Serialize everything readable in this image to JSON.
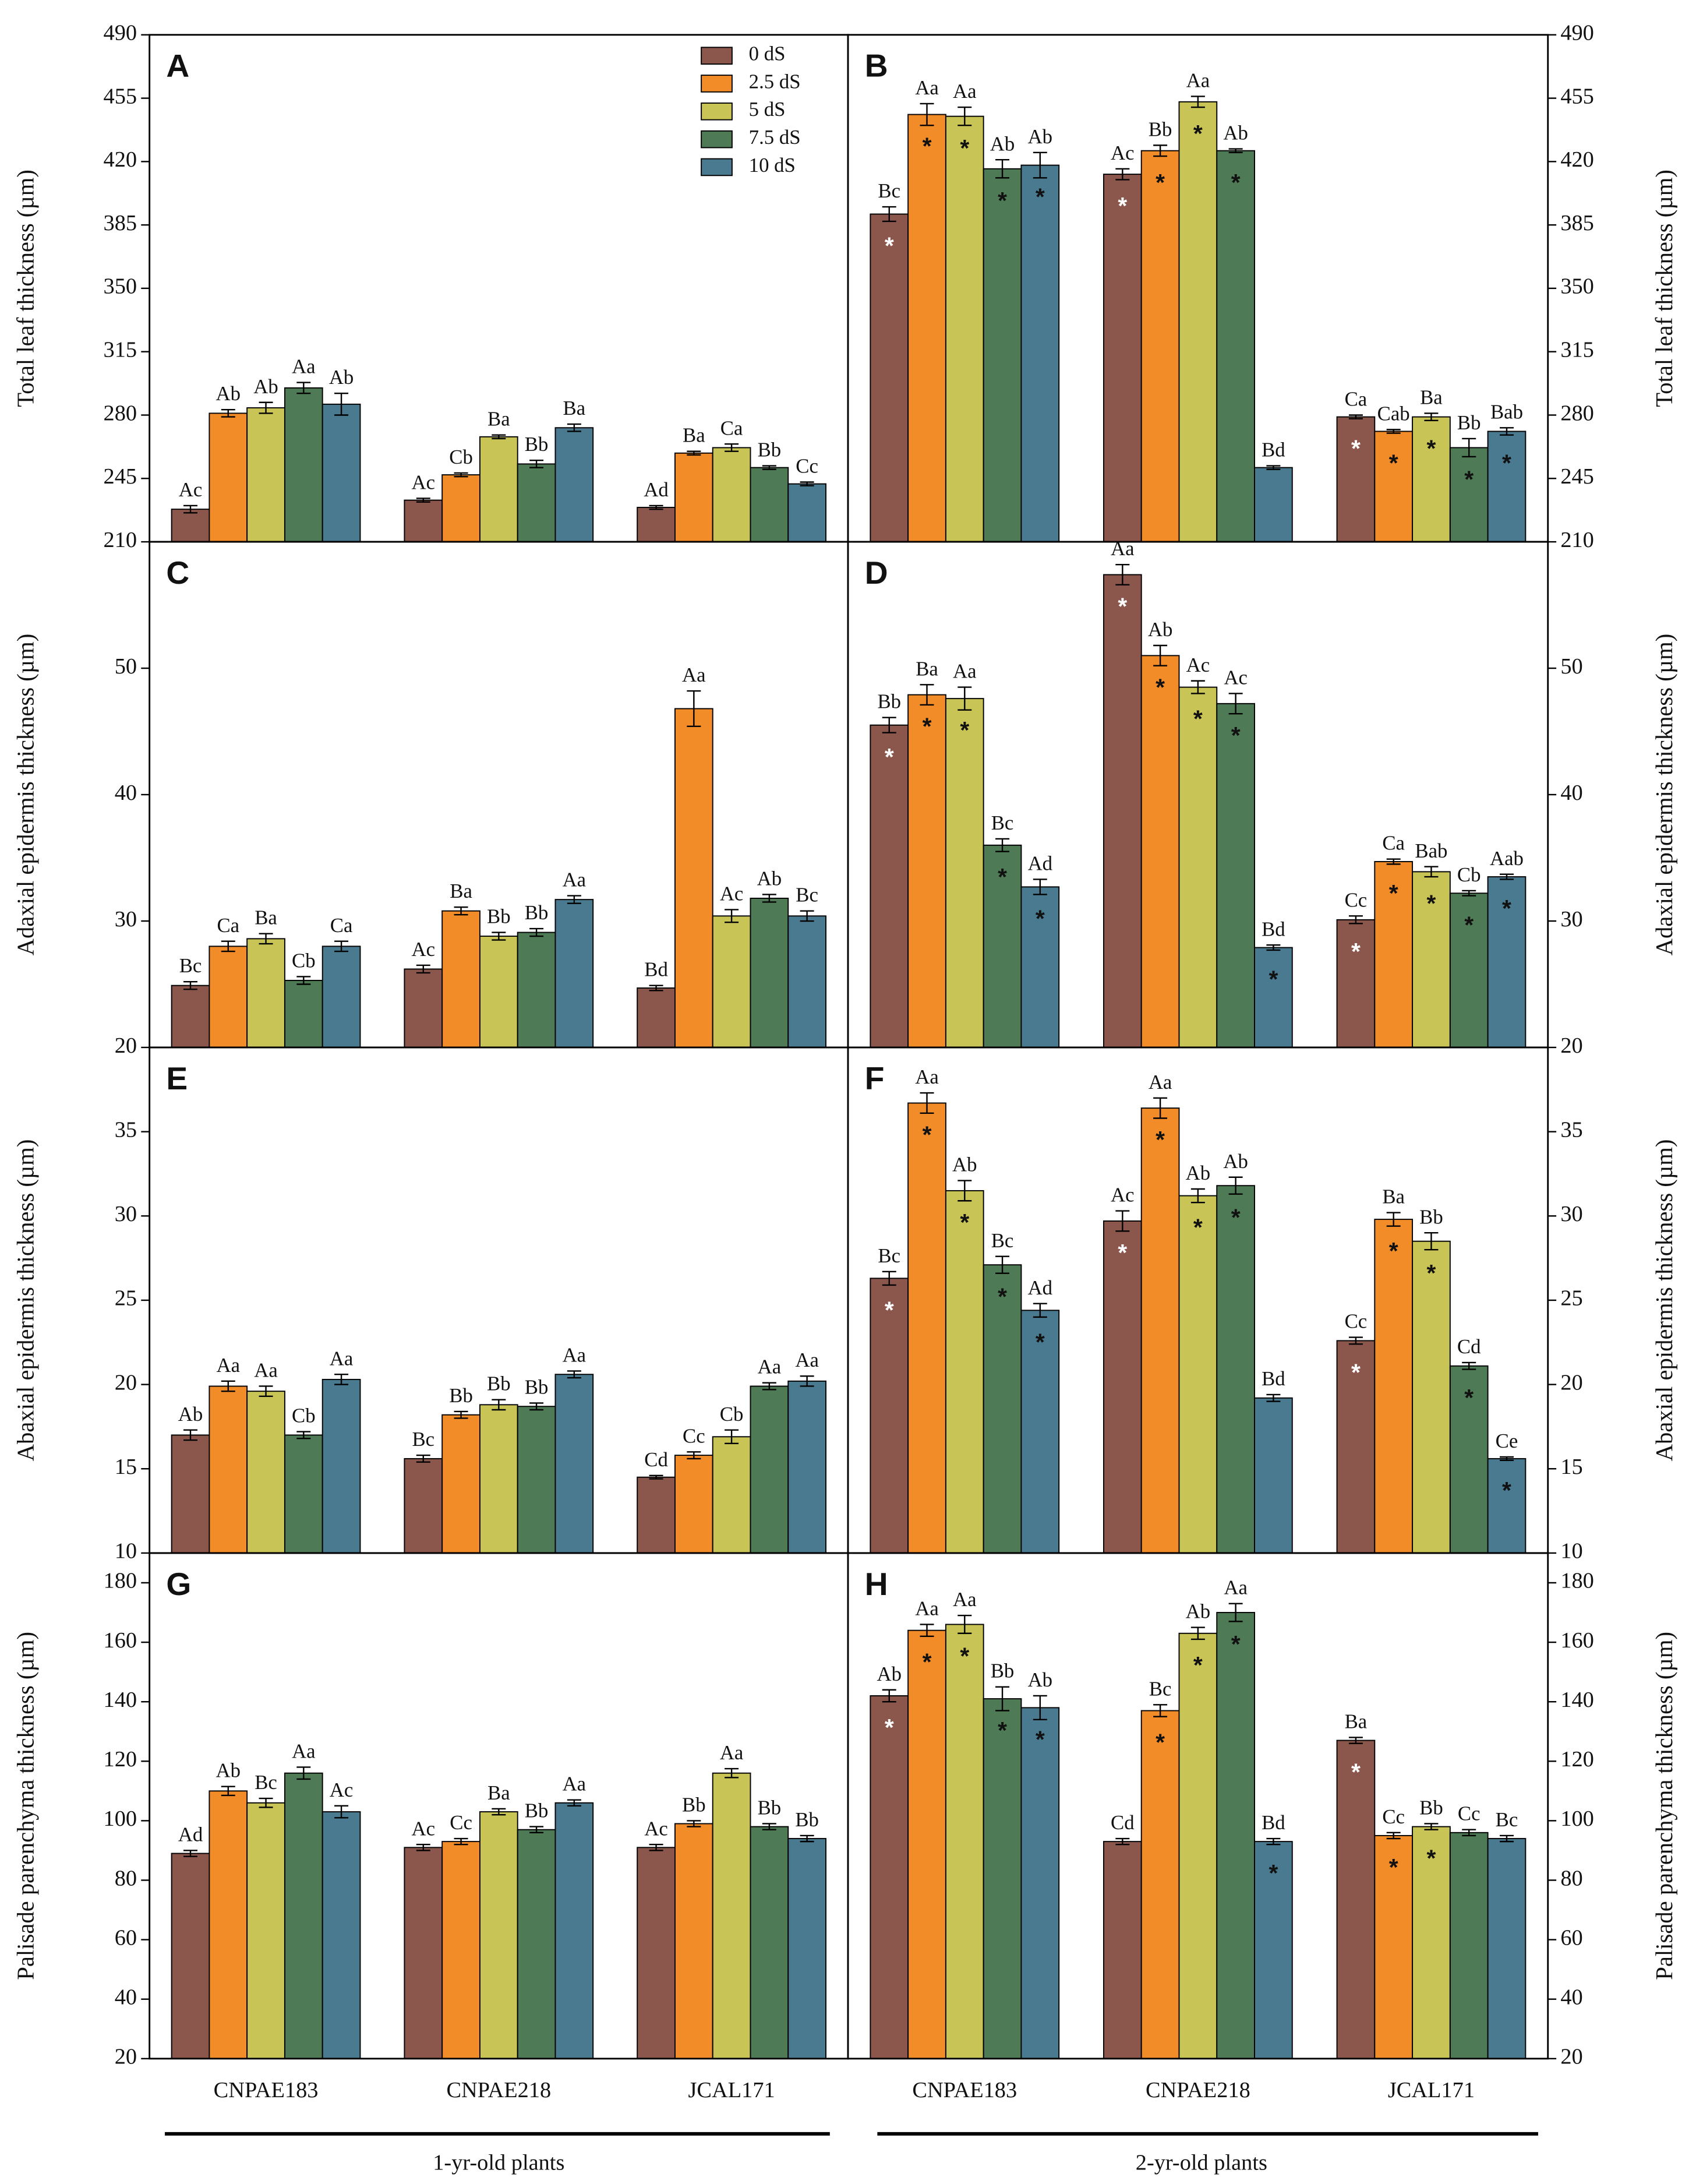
{
  "chart_data": [
    {
      "type": "bar",
      "panel": "A",
      "ylabel": "Total leaf thickness (µm)",
      "yaxis_side": "left",
      "legend": "upper right",
      "ylim": [
        210,
        490
      ],
      "yticks": [
        210,
        245,
        280,
        315,
        350,
        385,
        420,
        455,
        490
      ],
      "series": [
        {
          "name": "0 dS",
          "color": "#8b564c",
          "values": [
            228,
            233,
            229
          ],
          "errors": [
            2,
            1,
            1
          ],
          "letters": [
            "Ac",
            "Ac",
            "Ad"
          ]
        },
        {
          "name": "2.5 dS",
          "color": "#f28c28",
          "values": [
            281,
            247,
            259
          ],
          "errors": [
            2,
            1,
            1
          ],
          "letters": [
            "Ab",
            "Cb",
            "Ba"
          ]
        },
        {
          "name": "5 dS",
          "color": "#c8c455",
          "values": [
            284,
            268,
            262
          ],
          "errors": [
            3,
            1,
            2
          ],
          "letters": [
            "Ab",
            "Ba",
            "Ca"
          ]
        },
        {
          "name": "7.5 dS",
          "color": "#4e7a55",
          "values": [
            295,
            253,
            251
          ],
          "errors": [
            3,
            2,
            1
          ],
          "letters": [
            "Aa",
            "Bb",
            "Bb"
          ]
        },
        {
          "name": "10 dS",
          "color": "#4a7a90",
          "values": [
            286,
            273,
            242
          ],
          "errors": [
            6,
            2,
            1
          ],
          "letters": [
            "Ab",
            "Ba",
            "Cc"
          ]
        }
      ]
    },
    {
      "type": "bar",
      "panel": "B",
      "ylabel": "Total leaf thickness (µm)",
      "yaxis_side": "right",
      "ylim": [
        210,
        490
      ],
      "yticks": [
        210,
        245,
        280,
        315,
        350,
        385,
        420,
        455,
        490
      ],
      "series": [
        {
          "color": "#8b564c",
          "star_color": "#ffffff",
          "values": [
            391,
            413,
            279
          ],
          "errors": [
            4,
            3,
            1
          ],
          "letters": [
            "Bc",
            "Ac",
            "Ca"
          ],
          "stars": [
            "*",
            "*",
            "*"
          ]
        },
        {
          "color": "#f28c28",
          "star_color": "#111111",
          "values": [
            446,
            426,
            271
          ],
          "errors": [
            6,
            3,
            1
          ],
          "letters": [
            "Aa",
            "Bb",
            "Cab"
          ],
          "stars": [
            "*",
            "*",
            "*"
          ]
        },
        {
          "color": "#c8c455",
          "star_color": "#111111",
          "values": [
            445,
            453,
            279
          ],
          "errors": [
            5,
            3,
            2
          ],
          "letters": [
            "Aa",
            "Aa",
            "Ba"
          ],
          "stars": [
            "*",
            "*",
            "*"
          ]
        },
        {
          "color": "#4e7a55",
          "star_color": "#111111",
          "values": [
            416,
            426,
            262
          ],
          "errors": [
            5,
            1,
            5
          ],
          "letters": [
            "Ab",
            "Ab",
            "Bb"
          ],
          "stars": [
            "*",
            "*",
            "*"
          ]
        },
        {
          "color": "#4a7a90",
          "star_color": "#111111",
          "values": [
            418,
            251,
            271
          ],
          "errors": [
            7,
            1,
            2
          ],
          "letters": [
            "Ab",
            "Bd",
            "Bab"
          ],
          "stars": [
            "*",
            null,
            "*"
          ]
        }
      ]
    },
    {
      "type": "bar",
      "panel": "C",
      "ylabel": "Adaxial epidermis thickness (µm)",
      "yaxis_side": "left",
      "ylim": [
        20,
        60
      ],
      "yticks": [
        20,
        30,
        40,
        50
      ],
      "series": [
        {
          "color": "#8b564c",
          "values": [
            24.9,
            26.2,
            24.7
          ],
          "errors": [
            0.3,
            0.3,
            0.2
          ],
          "letters": [
            "Bc",
            "Ac",
            "Bd"
          ]
        },
        {
          "color": "#f28c28",
          "values": [
            28.0,
            30.8,
            46.8
          ],
          "errors": [
            0.4,
            0.3,
            1.4
          ],
          "letters": [
            "Ca",
            "Ba",
            "Aa"
          ]
        },
        {
          "color": "#c8c455",
          "values": [
            28.6,
            28.8,
            30.4
          ],
          "errors": [
            0.4,
            0.3,
            0.5
          ],
          "letters": [
            "Ba",
            "Bb",
            "Ac"
          ]
        },
        {
          "color": "#4e7a55",
          "values": [
            25.3,
            29.1,
            31.8
          ],
          "errors": [
            0.3,
            0.3,
            0.3
          ],
          "letters": [
            "Cb",
            "Bb",
            "Ab"
          ]
        },
        {
          "color": "#4a7a90",
          "values": [
            28.0,
            31.7,
            30.4
          ],
          "errors": [
            0.4,
            0.3,
            0.4
          ],
          "letters": [
            "Ca",
            "Aa",
            "Bc"
          ]
        }
      ]
    },
    {
      "type": "bar",
      "panel": "D",
      "ylabel": "Adaxial epidermis thickness (µm)",
      "yaxis_side": "right",
      "ylim": [
        20,
        60
      ],
      "yticks": [
        20,
        30,
        40,
        50
      ],
      "series": [
        {
          "color": "#8b564c",
          "star_color": "#ffffff",
          "values": [
            45.5,
            57.4,
            30.1
          ],
          "errors": [
            0.6,
            0.8,
            0.3
          ],
          "letters": [
            "Bb",
            "Aa",
            "Cc"
          ],
          "stars": [
            "*",
            "*",
            "*"
          ]
        },
        {
          "color": "#f28c28",
          "star_color": "#111111",
          "values": [
            47.9,
            51.0,
            34.7
          ],
          "errors": [
            0.8,
            0.8,
            0.2
          ],
          "letters": [
            "Ba",
            "Ab",
            "Ca"
          ],
          "stars": [
            "*",
            "*",
            "*"
          ]
        },
        {
          "color": "#c8c455",
          "star_color": "#111111",
          "values": [
            47.6,
            48.5,
            33.9
          ],
          "errors": [
            0.9,
            0.5,
            0.4
          ],
          "letters": [
            "Aa",
            "Ac",
            "Bab"
          ],
          "stars": [
            "*",
            "*",
            "*"
          ]
        },
        {
          "color": "#4e7a55",
          "star_color": "#111111",
          "values": [
            36.0,
            47.2,
            32.2
          ],
          "errors": [
            0.5,
            0.8,
            0.2
          ],
          "letters": [
            "Bc",
            "Ac",
            "Cb"
          ],
          "stars": [
            "*",
            "*",
            "*"
          ]
        },
        {
          "color": "#4a7a90",
          "star_color": "#111111",
          "values": [
            32.7,
            27.9,
            33.5
          ],
          "errors": [
            0.6,
            0.2,
            0.2
          ],
          "letters": [
            "Ad",
            "Bd",
            "Aab"
          ],
          "stars": [
            "*",
            "*",
            "*"
          ]
        }
      ]
    },
    {
      "type": "bar",
      "panel": "E",
      "ylabel": "Abaxial epidermis thickness (µm)",
      "yaxis_side": "left",
      "ylim": [
        10,
        40
      ],
      "yticks": [
        10,
        15,
        20,
        25,
        30,
        35
      ],
      "series": [
        {
          "color": "#8b564c",
          "values": [
            17.0,
            15.6,
            14.5
          ],
          "errors": [
            0.3,
            0.2,
            0.1
          ],
          "letters": [
            "Ab",
            "Bc",
            "Cd"
          ]
        },
        {
          "color": "#f28c28",
          "values": [
            19.9,
            18.2,
            15.8
          ],
          "errors": [
            0.3,
            0.2,
            0.2
          ],
          "letters": [
            "Aa",
            "Bb",
            "Cc"
          ]
        },
        {
          "color": "#c8c455",
          "values": [
            19.6,
            18.8,
            16.9
          ],
          "errors": [
            0.3,
            0.3,
            0.4
          ],
          "letters": [
            "Aa",
            "Bb",
            "Cb"
          ]
        },
        {
          "color": "#4e7a55",
          "values": [
            17.0,
            18.7,
            19.9
          ],
          "errors": [
            0.2,
            0.2,
            0.2
          ],
          "letters": [
            "Cb",
            "Bb",
            "Aa"
          ]
        },
        {
          "color": "#4a7a90",
          "values": [
            20.3,
            20.6,
            20.2
          ],
          "errors": [
            0.3,
            0.2,
            0.3
          ],
          "letters": [
            "Aa",
            "Aa",
            "Aa"
          ]
        }
      ]
    },
    {
      "type": "bar",
      "panel": "F",
      "ylabel": "Abaxial epidermis thickness (µm)",
      "yaxis_side": "right",
      "ylim": [
        10,
        40
      ],
      "yticks": [
        10,
        15,
        20,
        25,
        30,
        35
      ],
      "series": [
        {
          "color": "#8b564c",
          "star_color": "#ffffff",
          "values": [
            26.3,
            29.7,
            22.6
          ],
          "errors": [
            0.4,
            0.6,
            0.2
          ],
          "letters": [
            "Bc",
            "Ac",
            "Cc"
          ],
          "stars": [
            "*",
            "*",
            "*"
          ]
        },
        {
          "color": "#f28c28",
          "star_color": "#111111",
          "values": [
            36.7,
            36.4,
            29.8
          ],
          "errors": [
            0.6,
            0.6,
            0.4
          ],
          "letters": [
            "Aa",
            "Aa",
            "Ba"
          ],
          "stars": [
            "*",
            "*",
            "*"
          ]
        },
        {
          "color": "#c8c455",
          "star_color": "#111111",
          "values": [
            31.5,
            31.2,
            28.5
          ],
          "errors": [
            0.6,
            0.4,
            0.5
          ],
          "letters": [
            "Ab",
            "Ab",
            "Bb"
          ],
          "stars": [
            "*",
            "*",
            "*"
          ]
        },
        {
          "color": "#4e7a55",
          "star_color": "#111111",
          "values": [
            27.1,
            31.8,
            21.1
          ],
          "errors": [
            0.5,
            0.5,
            0.2
          ],
          "letters": [
            "Bc",
            "Ab",
            "Cd"
          ],
          "stars": [
            "*",
            "*",
            "*"
          ]
        },
        {
          "color": "#4a7a90",
          "star_color": "#111111",
          "values": [
            24.4,
            19.2,
            15.6
          ],
          "errors": [
            0.4,
            0.2,
            0.1
          ],
          "letters": [
            "Ad",
            "Bd",
            "Ce"
          ],
          "stars": [
            "*",
            null,
            "*"
          ]
        }
      ]
    },
    {
      "type": "bar",
      "panel": "G",
      "ylabel": "Palisade parenchyma thickness (µm)",
      "yaxis_side": "left",
      "categories": [
        "CNPAE183",
        "CNPAE218",
        "JCAL171"
      ],
      "ylim": [
        20,
        190
      ],
      "yticks": [
        20,
        40,
        60,
        80,
        100,
        120,
        140,
        160,
        180
      ],
      "series": [
        {
          "color": "#8b564c",
          "values": [
            89,
            91,
            91
          ],
          "errors": [
            1,
            1,
            1
          ],
          "letters": [
            "Ad",
            "Ac",
            "Ac"
          ]
        },
        {
          "color": "#f28c28",
          "values": [
            110,
            93,
            99
          ],
          "errors": [
            1.5,
            1,
            1
          ],
          "letters": [
            "Ab",
            "Cc",
            "Bb"
          ]
        },
        {
          "color": "#c8c455",
          "values": [
            106,
            103,
            116
          ],
          "errors": [
            1.5,
            1,
            1.5
          ],
          "letters": [
            "Bc",
            "Ba",
            "Aa"
          ]
        },
        {
          "color": "#4e7a55",
          "values": [
            116,
            97,
            98
          ],
          "errors": [
            2,
            1,
            1
          ],
          "letters": [
            "Aa",
            "Bb",
            "Bb"
          ]
        },
        {
          "color": "#4a7a90",
          "values": [
            103,
            106,
            94
          ],
          "errors": [
            2,
            1,
            1
          ],
          "letters": [
            "Ac",
            "Aa",
            "Bb"
          ]
        }
      ]
    },
    {
      "type": "bar",
      "panel": "H",
      "ylabel": "Palisade parenchyma thickness (µm)",
      "yaxis_side": "right",
      "categories": [
        "CNPAE183",
        "CNPAE218",
        "JCAL171"
      ],
      "ylim": [
        20,
        190
      ],
      "yticks": [
        20,
        40,
        60,
        80,
        100,
        120,
        140,
        160,
        180
      ],
      "series": [
        {
          "color": "#8b564c",
          "star_color": "#ffffff",
          "values": [
            142,
            93,
            127
          ],
          "errors": [
            2,
            1,
            1
          ],
          "letters": [
            "Ab",
            "Cd",
            "Ba"
          ],
          "stars": [
            "*",
            null,
            "*"
          ]
        },
        {
          "color": "#f28c28",
          "star_color": "#111111",
          "values": [
            164,
            137,
            95
          ],
          "errors": [
            2,
            2,
            1
          ],
          "letters": [
            "Aa",
            "Bc",
            "Cc"
          ],
          "stars": [
            "*",
            "*",
            "*"
          ]
        },
        {
          "color": "#c8c455",
          "star_color": "#111111",
          "values": [
            166,
            163,
            98
          ],
          "errors": [
            3,
            2,
            1
          ],
          "letters": [
            "Aa",
            "Ab",
            "Bb"
          ],
          "stars": [
            "*",
            "*",
            "*"
          ]
        },
        {
          "color": "#4e7a55",
          "star_color": "#111111",
          "values": [
            141,
            170,
            96
          ],
          "errors": [
            4,
            3,
            1
          ],
          "letters": [
            "Bb",
            "Aa",
            "Cc"
          ],
          "stars": [
            "*",
            "*",
            null
          ]
        },
        {
          "color": "#4a7a90",
          "star_color": "#111111",
          "values": [
            138,
            93,
            94
          ],
          "errors": [
            4,
            1,
            1
          ],
          "letters": [
            "Ab",
            "Bd",
            "Bc"
          ],
          "stars": [
            "*",
            "*",
            null
          ]
        }
      ]
    }
  ],
  "groups": [
    "1-yr-old plants",
    "2-yr-old plants"
  ]
}
